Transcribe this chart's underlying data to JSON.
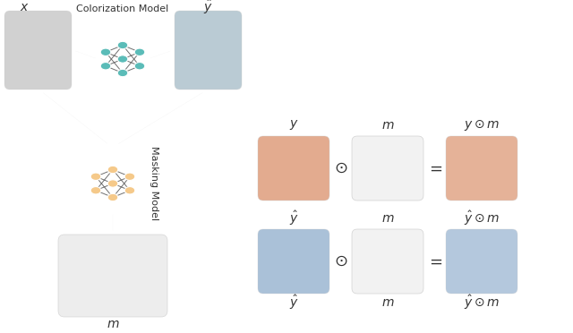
{
  "bg_color": "#ffffff",
  "teal_color": "#5bbcb8",
  "orange_color": "#f5c98a",
  "arrow_color": "#c8c8c8",
  "line_color": "#555555",
  "text_color": "#333333",
  "colorization_label": "Colorization Model",
  "masking_label": "Masking Model",
  "x_label": "$x$",
  "y_hat_top_label": "$\\hat{y}$",
  "y_label": "$y$",
  "m_label": "$m$",
  "y_dot_m_label": "$y \\odot m$",
  "y_hat_label": "$\\hat{y}$",
  "m_label2": "$m$",
  "y_hat_dot_m_label": "$\\hat{y} \\odot m$",
  "m_bottom_label": "$m$"
}
